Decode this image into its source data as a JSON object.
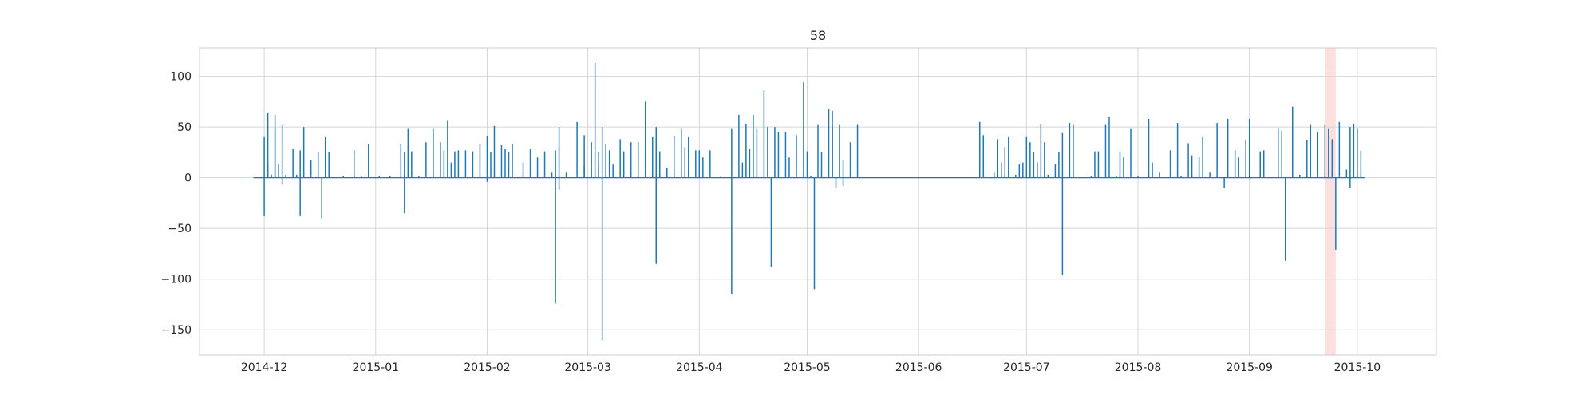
{
  "chart_data": {
    "type": "line",
    "title": "58",
    "xlabel": "",
    "ylabel": "",
    "x_range": [
      "2014-11-13",
      "2015-10-23"
    ],
    "ylim": [
      -175,
      128
    ],
    "x_ticks": [
      {
        "date": "2014-12-01",
        "label": "2014-12"
      },
      {
        "date": "2015-01-01",
        "label": "2015-01"
      },
      {
        "date": "2015-02-01",
        "label": "2015-02"
      },
      {
        "date": "2015-03-01",
        "label": "2015-03"
      },
      {
        "date": "2015-04-01",
        "label": "2015-04"
      },
      {
        "date": "2015-05-01",
        "label": "2015-05"
      },
      {
        "date": "2015-06-01",
        "label": "2015-06"
      },
      {
        "date": "2015-07-01",
        "label": "2015-07"
      },
      {
        "date": "2015-08-01",
        "label": "2015-08"
      },
      {
        "date": "2015-09-01",
        "label": "2015-09"
      },
      {
        "date": "2015-10-01",
        "label": "2015-10"
      }
    ],
    "y_ticks": [
      {
        "value": 100,
        "label": "100"
      },
      {
        "value": 50,
        "label": "50"
      },
      {
        "value": 0,
        "label": "0"
      },
      {
        "value": -50,
        "label": "−50"
      },
      {
        "value": -100,
        "label": "−100"
      },
      {
        "value": -150,
        "label": "−150"
      }
    ],
    "grid": true,
    "highlight_span": {
      "start": "2015-09-22",
      "end": "2015-09-25",
      "color": "#f9c5c5"
    },
    "series": [
      {
        "color": "#1f77b4",
        "points": [
          [
            "2014-11-28",
            0
          ],
          [
            "2014-12-01",
            40
          ],
          [
            "2014-12-01",
            -38
          ],
          [
            "2014-12-02",
            64
          ],
          [
            "2014-12-02",
            14
          ],
          [
            "2014-12-03",
            3
          ],
          [
            "2014-12-04",
            48
          ],
          [
            "2014-12-04",
            62
          ],
          [
            "2014-12-05",
            13
          ],
          [
            "2014-12-06",
            -7
          ],
          [
            "2014-12-06",
            52
          ],
          [
            "2014-12-07",
            3
          ],
          [
            "2014-12-09",
            28
          ],
          [
            "2014-12-10",
            3
          ],
          [
            "2014-12-11",
            27
          ],
          [
            "2014-12-12",
            50
          ],
          [
            "2014-12-11",
            -38
          ],
          [
            "2014-12-14",
            17
          ],
          [
            "2014-12-16",
            25
          ],
          [
            "2014-12-17",
            -40
          ],
          [
            "2014-12-18",
            40
          ],
          [
            "2014-12-19",
            25
          ],
          [
            "2014-12-23",
            2
          ],
          [
            "2014-12-26",
            27
          ],
          [
            "2014-12-28",
            2
          ],
          [
            "2014-12-30",
            33
          ],
          [
            "2015-01-02",
            2
          ],
          [
            "2015-01-05",
            2
          ],
          [
            "2015-01-08",
            33
          ],
          [
            "2015-01-09",
            25
          ],
          [
            "2015-01-10",
            48
          ],
          [
            "2015-01-09",
            -35
          ],
          [
            "2015-01-11",
            26
          ],
          [
            "2015-01-13",
            2
          ],
          [
            "2015-01-15",
            35
          ],
          [
            "2015-01-17",
            48
          ],
          [
            "2015-01-19",
            35
          ],
          [
            "2015-01-20",
            27
          ],
          [
            "2015-01-21",
            56
          ],
          [
            "2015-01-22",
            15
          ],
          [
            "2015-01-23",
            26
          ],
          [
            "2015-01-24",
            27
          ],
          [
            "2015-01-26",
            27
          ],
          [
            "2015-01-28",
            26
          ],
          [
            "2015-01-30",
            33
          ],
          [
            "2015-02-01",
            41
          ],
          [
            "2015-02-02",
            25
          ],
          [
            "2015-02-03",
            51
          ],
          [
            "2015-02-01",
            -4
          ],
          [
            "2015-02-05",
            32
          ],
          [
            "2015-02-06",
            28
          ],
          [
            "2015-02-07",
            25
          ],
          [
            "2015-02-08",
            33
          ],
          [
            "2015-02-11",
            15
          ],
          [
            "2015-02-13",
            28
          ],
          [
            "2015-02-15",
            20
          ],
          [
            "2015-02-17",
            26
          ],
          [
            "2015-02-19",
            5
          ],
          [
            "2015-02-20",
            27
          ],
          [
            "2015-02-20",
            -124
          ],
          [
            "2015-02-21",
            50
          ],
          [
            "2015-02-21",
            -12
          ],
          [
            "2015-02-23",
            5
          ],
          [
            "2015-02-26",
            55
          ],
          [
            "2015-02-28",
            42
          ],
          [
            "2015-02-28",
            12
          ],
          [
            "2015-03-02",
            35
          ],
          [
            "2015-03-03",
            113
          ],
          [
            "2015-03-04",
            25
          ],
          [
            "2015-03-04",
            12
          ],
          [
            "2015-03-05",
            50
          ],
          [
            "2015-03-05",
            -160
          ],
          [
            "2015-03-06",
            33
          ],
          [
            "2015-03-07",
            27
          ],
          [
            "2015-03-08",
            13
          ],
          [
            "2015-03-10",
            38
          ],
          [
            "2015-03-11",
            26
          ],
          [
            "2015-03-13",
            35
          ],
          [
            "2015-03-15",
            35
          ],
          [
            "2015-03-17",
            75
          ],
          [
            "2015-03-19",
            40
          ],
          [
            "2015-03-20",
            50
          ],
          [
            "2015-03-21",
            26
          ],
          [
            "2015-03-20",
            -85
          ],
          [
            "2015-03-23",
            10
          ],
          [
            "2015-03-25",
            41
          ],
          [
            "2015-03-27",
            48
          ],
          [
            "2015-03-28",
            30
          ],
          [
            "2015-03-29",
            40
          ],
          [
            "2015-03-31",
            27
          ],
          [
            "2015-04-01",
            27
          ],
          [
            "2015-04-02",
            20
          ],
          [
            "2015-04-04",
            27
          ],
          [
            "2015-04-07",
            1
          ],
          [
            "2015-04-10",
            48
          ],
          [
            "2015-04-10",
            -115
          ],
          [
            "2015-04-12",
            62
          ],
          [
            "2015-04-13",
            15
          ],
          [
            "2015-04-14",
            53
          ],
          [
            "2015-04-15",
            28
          ],
          [
            "2015-04-16",
            62
          ],
          [
            "2015-04-17",
            48
          ],
          [
            "2015-04-19",
            86
          ],
          [
            "2015-04-20",
            50
          ],
          [
            "2015-04-21",
            -88
          ],
          [
            "2015-04-22",
            50
          ],
          [
            "2015-04-23",
            45
          ],
          [
            "2015-04-25",
            45
          ],
          [
            "2015-04-26",
            20
          ],
          [
            "2015-04-28",
            42
          ],
          [
            "2015-04-30",
            94
          ],
          [
            "2015-05-01",
            26
          ],
          [
            "2015-05-02",
            2
          ],
          [
            "2015-05-03",
            -110
          ],
          [
            "2015-05-04",
            52
          ],
          [
            "2015-05-05",
            25
          ],
          [
            "2015-05-07",
            68
          ],
          [
            "2015-05-08",
            50
          ],
          [
            "2015-05-08",
            66
          ],
          [
            "2015-05-09",
            -10
          ],
          [
            "2015-05-10",
            52
          ],
          [
            "2015-05-11",
            -8
          ],
          [
            "2015-05-11",
            17
          ],
          [
            "2015-05-13",
            35
          ],
          [
            "2015-05-15",
            52
          ],
          [
            "2015-06-18",
            55
          ],
          [
            "2015-06-19",
            42
          ],
          [
            "2015-06-19",
            27
          ],
          [
            "2015-06-22",
            5
          ],
          [
            "2015-06-23",
            38
          ],
          [
            "2015-06-24",
            15
          ],
          [
            "2015-06-25",
            30
          ],
          [
            "2015-06-26",
            40
          ],
          [
            "2015-06-28",
            3
          ],
          [
            "2015-06-29",
            13
          ],
          [
            "2015-06-30",
            15
          ],
          [
            "2015-07-01",
            40
          ],
          [
            "2015-07-02",
            35
          ],
          [
            "2015-07-03",
            25
          ],
          [
            "2015-07-04",
            15
          ],
          [
            "2015-07-05",
            53
          ],
          [
            "2015-07-06",
            35
          ],
          [
            "2015-07-07",
            3
          ],
          [
            "2015-07-09",
            13
          ],
          [
            "2015-07-10",
            25
          ],
          [
            "2015-07-11",
            44
          ],
          [
            "2015-07-11",
            -96
          ],
          [
            "2015-07-13",
            54
          ],
          [
            "2015-07-14",
            52
          ],
          [
            "2015-07-19",
            2
          ],
          [
            "2015-07-20",
            26
          ],
          [
            "2015-07-21",
            26
          ],
          [
            "2015-07-23",
            52
          ],
          [
            "2015-07-24",
            60
          ],
          [
            "2015-07-26",
            2
          ],
          [
            "2015-07-27",
            26
          ],
          [
            "2015-07-28",
            20
          ],
          [
            "2015-07-30",
            48
          ],
          [
            "2015-08-01",
            2
          ],
          [
            "2015-08-04",
            58
          ],
          [
            "2015-08-05",
            15
          ],
          [
            "2015-08-07",
            5
          ],
          [
            "2015-08-10",
            27
          ],
          [
            "2015-08-12",
            54
          ],
          [
            "2015-08-13",
            2
          ],
          [
            "2015-08-15",
            34
          ],
          [
            "2015-08-16",
            22
          ],
          [
            "2015-08-18",
            20
          ],
          [
            "2015-08-19",
            40
          ],
          [
            "2015-08-21",
            5
          ],
          [
            "2015-08-23",
            54
          ],
          [
            "2015-08-25",
            -10
          ],
          [
            "2015-08-26",
            58
          ],
          [
            "2015-08-28",
            27
          ],
          [
            "2015-08-29",
            20
          ],
          [
            "2015-08-31",
            37
          ],
          [
            "2015-09-01",
            58
          ],
          [
            "2015-09-04",
            26
          ],
          [
            "2015-09-05",
            27
          ],
          [
            "2015-09-09",
            48
          ],
          [
            "2015-09-10",
            46
          ],
          [
            "2015-09-11",
            -82
          ],
          [
            "2015-09-13",
            70
          ],
          [
            "2015-09-15",
            3
          ],
          [
            "2015-09-17",
            37
          ],
          [
            "2015-09-18",
            52
          ],
          [
            "2015-09-20",
            45
          ],
          [
            "2015-09-22",
            52
          ],
          [
            "2015-09-23",
            48
          ],
          [
            "2015-09-24",
            38
          ],
          [
            "2015-09-25",
            -71
          ],
          [
            "2015-09-26",
            55
          ],
          [
            "2015-09-28",
            8
          ],
          [
            "2015-09-29",
            50
          ],
          [
            "2015-09-29",
            -10
          ],
          [
            "2015-09-30",
            53
          ],
          [
            "2015-10-01",
            48
          ],
          [
            "2015-10-02",
            27
          ],
          [
            "2015-10-03",
            0
          ]
        ]
      }
    ]
  }
}
